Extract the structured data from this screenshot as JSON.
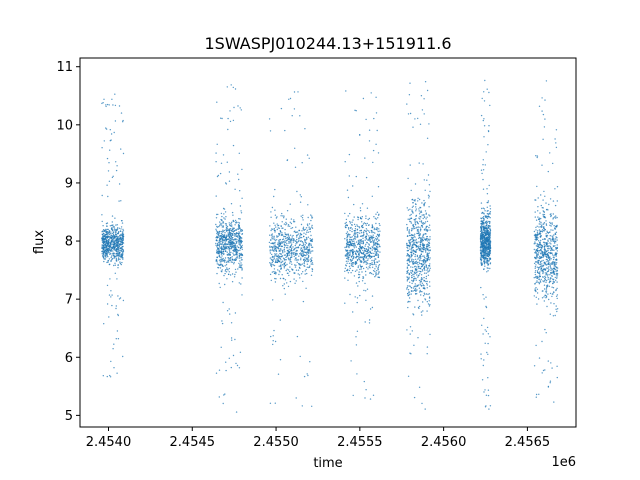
{
  "chart_data": {
    "type": "scatter",
    "title": "1SWASPJ010244.13+151911.6",
    "xlabel": "time",
    "ylabel": "flux",
    "x_offset_label": "1e6",
    "x_tick_values": [
      2454000,
      2454500,
      2455000,
      2455500,
      2456000,
      2456500
    ],
    "x_tick_labels": [
      "2.4540",
      "2.4545",
      "2.4550",
      "2.4555",
      "2.4560",
      "2.4565"
    ],
    "y_tick_values": [
      5,
      6,
      7,
      8,
      9,
      10,
      11
    ],
    "y_tick_labels": [
      "5",
      "6",
      "7",
      "8",
      "9",
      "10",
      "11"
    ],
    "xlim": [
      2453830,
      2456790
    ],
    "ylim": [
      4.8,
      11.15
    ],
    "grid": false,
    "legend": "none",
    "color": "#1f77b4",
    "observing_seasons": [
      {
        "x_start": 2453960,
        "x_end": 2454090,
        "median": 7.95,
        "core_low": 7.3,
        "core_high": 8.6,
        "min": 5.65,
        "max": 10.6
      },
      {
        "x_start": 2454640,
        "x_end": 2454800,
        "median": 7.95,
        "core_low": 7.1,
        "core_high": 8.95,
        "min": 5.05,
        "max": 10.7
      },
      {
        "x_start": 2454960,
        "x_end": 2455220,
        "median": 7.85,
        "core_low": 7.1,
        "core_high": 9.1,
        "min": 5.1,
        "max": 10.65
      },
      {
        "x_start": 2455410,
        "x_end": 2455620,
        "median": 7.9,
        "core_low": 7.0,
        "core_high": 9.0,
        "min": 5.1,
        "max": 10.7
      },
      {
        "x_start": 2455780,
        "x_end": 2455920,
        "median": 7.8,
        "core_low": 6.3,
        "core_high": 9.8,
        "min": 5.05,
        "max": 10.8
      },
      {
        "x_start": 2456220,
        "x_end": 2456280,
        "median": 8.0,
        "core_low": 7.2,
        "core_high": 9.0,
        "min": 5.1,
        "max": 10.8
      },
      {
        "x_start": 2456540,
        "x_end": 2456680,
        "median": 7.8,
        "core_low": 6.9,
        "core_high": 10.0,
        "min": 5.15,
        "max": 10.8
      }
    ]
  }
}
